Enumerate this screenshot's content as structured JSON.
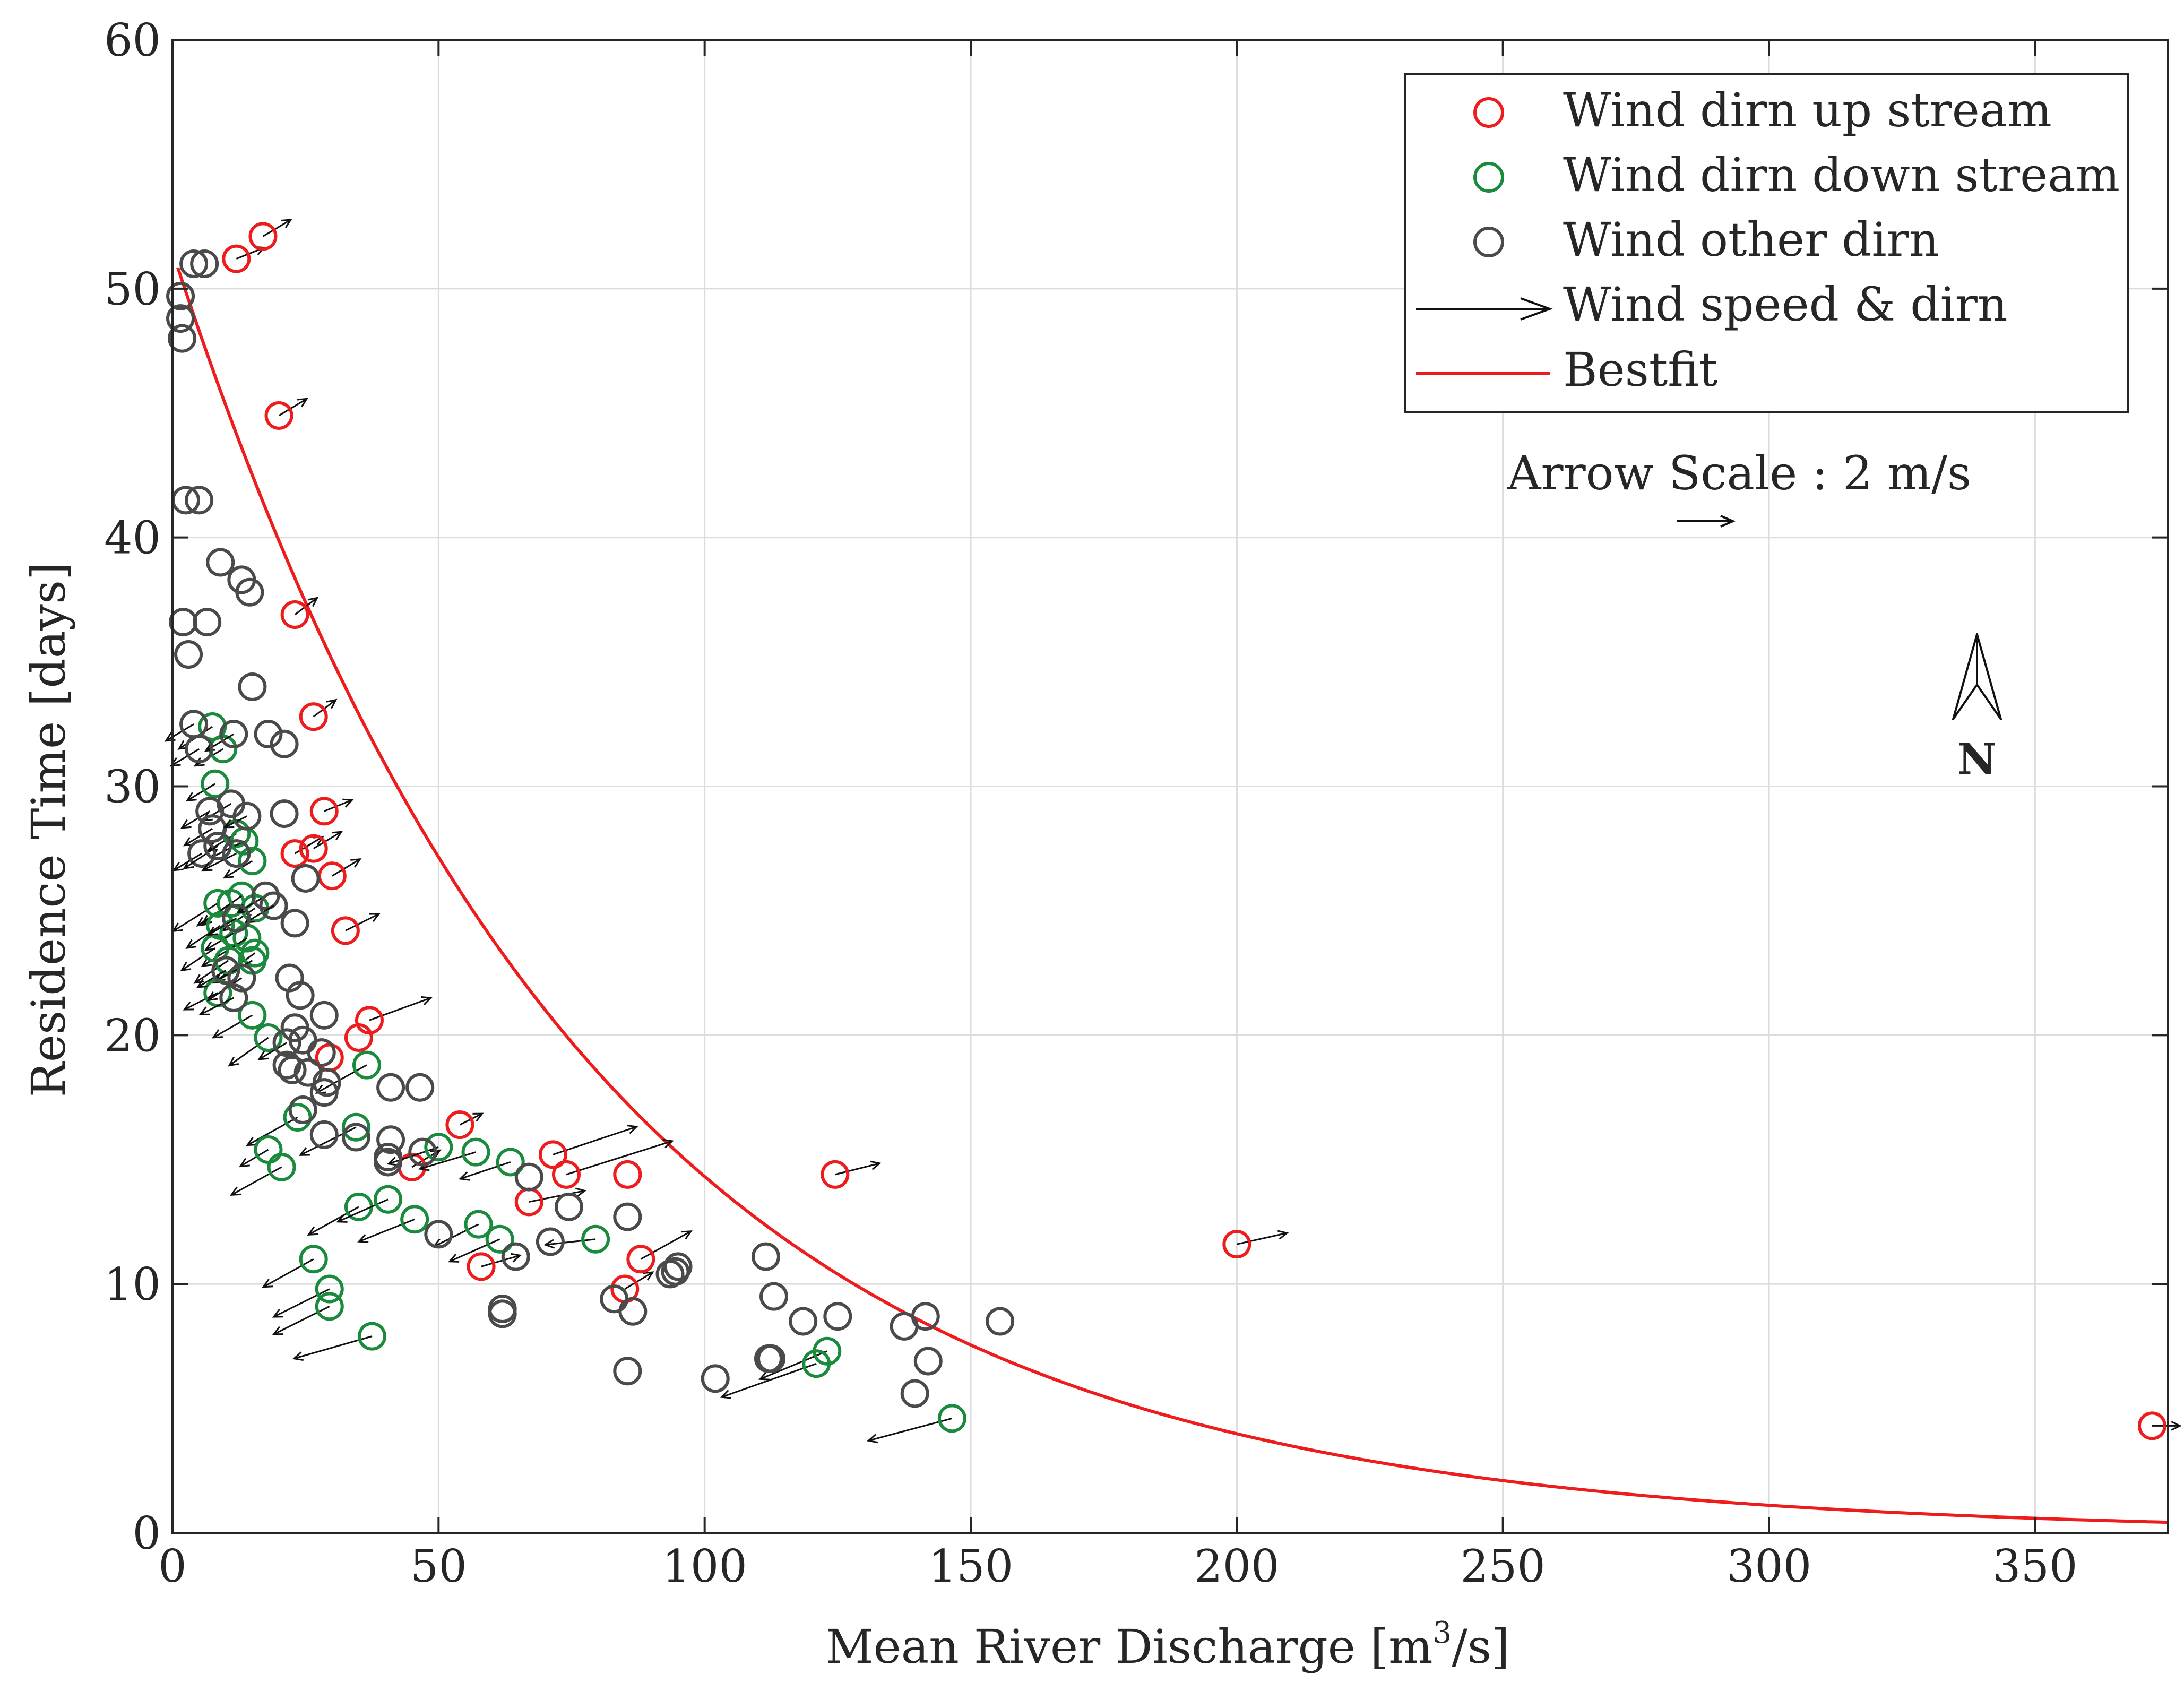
{
  "chart_data": {
    "type": "scatter",
    "title": "",
    "xlabel": {
      "main": "Mean River Discharge [m",
      "sup": "3",
      "tail": "/s]"
    },
    "ylabel": "Residence Time [days]",
    "xlim": [
      0,
      375
    ],
    "ylim": [
      0,
      60
    ],
    "xticks": [
      0,
      50,
      100,
      150,
      200,
      250,
      300,
      350
    ],
    "yticks": [
      0,
      10,
      20,
      30,
      40,
      50,
      60
    ],
    "xtick_labels": [
      "0",
      "50",
      "100",
      "150",
      "200",
      "250",
      "300",
      "350"
    ],
    "ytick_labels": [
      "0",
      "10",
      "20",
      "30",
      "40",
      "50",
      "60"
    ],
    "grid": true,
    "legend_position": "top-right",
    "legend": [
      {
        "label": "Wind dirn up stream",
        "marker": "circle",
        "color": "#ee1c1c"
      },
      {
        "label": "Wind dirn down stream",
        "marker": "circle",
        "color": "#1a8a3c"
      },
      {
        "label": "Wind other dirn",
        "marker": "circle",
        "color": "#4a4a4a"
      },
      {
        "label": "Wind speed & dirn",
        "marker": "arrow",
        "color": "#111111"
      },
      {
        "label": "Bestfit",
        "marker": "line",
        "color": "#ee1c1c"
      }
    ],
    "arrow_scale_label": "Arrow Scale : 2 m/s",
    "north_label": "N",
    "bestfit": {
      "a": 51.5,
      "b": 0.0128,
      "x_start": 1,
      "x_end": 375
    },
    "series": [
      {
        "name": "Wind dirn up stream",
        "color": "#ee1c1c",
        "points": [
          [
            12,
            51.2,
            5,
            2
          ],
          [
            17,
            52.1,
            5,
            3
          ],
          [
            20,
            44.9,
            5,
            3
          ],
          [
            23,
            36.9,
            4,
            3
          ],
          [
            26.5,
            32.8,
            4,
            3
          ],
          [
            28.5,
            29.0,
            5,
            2
          ],
          [
            23,
            27.3,
            5,
            3
          ],
          [
            26.5,
            27.5,
            5,
            3
          ],
          [
            30,
            26.4,
            5,
            3
          ],
          [
            32.5,
            24.2,
            6,
            3
          ],
          [
            37,
            20.6,
            11,
            4
          ],
          [
            35,
            19.9,
            0,
            0
          ],
          [
            29.5,
            19.1,
            0,
            0
          ],
          [
            54,
            16.4,
            4,
            2
          ],
          [
            45,
            14.7,
            5,
            3
          ],
          [
            71.5,
            15.2,
            15,
            5
          ],
          [
            74,
            14.4,
            19,
            6
          ],
          [
            67,
            13.3,
            10,
            2
          ],
          [
            85.5,
            14.4,
            0,
            0
          ],
          [
            124.5,
            14.4,
            8,
            2
          ],
          [
            58,
            10.7,
            7,
            2
          ],
          [
            85,
            9.8,
            5,
            3
          ],
          [
            88,
            11.0,
            9,
            5
          ],
          [
            200,
            11.6,
            9,
            2
          ],
          [
            372,
            4.3,
            5,
            0
          ]
        ]
      },
      {
        "name": "Wind dirn down stream",
        "color": "#1a8a3c",
        "points": [
          [
            7.5,
            32.4,
            -6,
            -4
          ],
          [
            9.5,
            31.5,
            -5,
            -3
          ],
          [
            8,
            30.1,
            -5,
            -3
          ],
          [
            12,
            28.1,
            -5,
            -3
          ],
          [
            13.5,
            27.8,
            -6,
            -3
          ],
          [
            15,
            27.0,
            -5,
            -3
          ],
          [
            8.5,
            25.3,
            -8,
            -5
          ],
          [
            11,
            25.3,
            -6,
            -4
          ],
          [
            13,
            25.6,
            -7,
            -5
          ],
          [
            15.5,
            25.1,
            -6,
            -4
          ],
          [
            9,
            24.4,
            -6,
            -4
          ],
          [
            11.5,
            24.1,
            -5,
            -3
          ],
          [
            14,
            23.9,
            -8,
            -5
          ],
          [
            15.5,
            23.3,
            -7,
            -5
          ],
          [
            8,
            23.5,
            -6,
            -4
          ],
          [
            10.5,
            23.0,
            -6,
            -4
          ],
          [
            15,
            23.0,
            -7,
            -4
          ],
          [
            8.5,
            21.7,
            -6,
            -3
          ],
          [
            15,
            20.8,
            -7,
            -4
          ],
          [
            18,
            19.9,
            -7,
            -5
          ],
          [
            36.5,
            18.8,
            -9,
            -5
          ],
          [
            23.5,
            16.7,
            -9,
            -5
          ],
          [
            34.5,
            16.3,
            -10,
            -5
          ],
          [
            18,
            15.4,
            -5,
            -3
          ],
          [
            20.5,
            14.7,
            -9,
            -5
          ],
          [
            50,
            15.5,
            -9,
            -3
          ],
          [
            57,
            15.3,
            -10,
            -3
          ],
          [
            63.5,
            14.9,
            -9,
            -3
          ],
          [
            35,
            13.1,
            -9,
            -5
          ],
          [
            40.5,
            13.4,
            -9,
            -4
          ],
          [
            45.5,
            12.6,
            -10,
            -4
          ],
          [
            57.5,
            12.4,
            -8,
            -4
          ],
          [
            61.5,
            11.8,
            -9,
            -4
          ],
          [
            79.5,
            11.8,
            -9,
            -1
          ],
          [
            26.5,
            11.0,
            -9,
            -5
          ],
          [
            29.5,
            9.8,
            -10,
            -5
          ],
          [
            29.5,
            9.1,
            -10,
            -5
          ],
          [
            37.5,
            7.9,
            -14,
            -4
          ],
          [
            123,
            7.3,
            -12,
            -5
          ],
          [
            121,
            6.8,
            -17,
            -6
          ],
          [
            146.5,
            4.6,
            -15,
            -4
          ]
        ]
      },
      {
        "name": "Wind other dirn",
        "color": "#4a4a4a",
        "points": [
          [
            4,
            51.0,
            0,
            0
          ],
          [
            6,
            51.0,
            0,
            0
          ],
          [
            1.5,
            49.7,
            0,
            0
          ],
          [
            1.5,
            48.8,
            0,
            0
          ],
          [
            1.8,
            48.0,
            0,
            0
          ],
          [
            2.5,
            41.5,
            0,
            0
          ],
          [
            5,
            41.5,
            0,
            0
          ],
          [
            9,
            39.0,
            0,
            0
          ],
          [
            13,
            38.3,
            0,
            0
          ],
          [
            14.5,
            37.8,
            0,
            0
          ],
          [
            2,
            36.6,
            0,
            0
          ],
          [
            6.5,
            36.6,
            0,
            0
          ],
          [
            3,
            35.3,
            0,
            0
          ],
          [
            15,
            34.0,
            0,
            0
          ],
          [
            4,
            32.5,
            -5,
            -3
          ],
          [
            11.5,
            32.1,
            -5,
            -3
          ],
          [
            18,
            32.1,
            0,
            0
          ],
          [
            21,
            31.7,
            0,
            0
          ],
          [
            5,
            31.5,
            -5,
            -3
          ],
          [
            11,
            29.3,
            -5,
            -3
          ],
          [
            7,
            29.0,
            -5,
            -3
          ],
          [
            7.5,
            28.3,
            -5,
            -3
          ],
          [
            14,
            28.8,
            -4,
            -2
          ],
          [
            21,
            28.9,
            0,
            0
          ],
          [
            5.5,
            27.3,
            -5,
            -3
          ],
          [
            8.5,
            27.6,
            -6,
            -4
          ],
          [
            12,
            27.3,
            -6,
            -3
          ],
          [
            25,
            26.3,
            0,
            0
          ],
          [
            17.5,
            25.6,
            -5,
            -3
          ],
          [
            19,
            25.2,
            -5,
            -3
          ],
          [
            12,
            24.7,
            -5,
            -3
          ],
          [
            23,
            24.5,
            0,
            0
          ],
          [
            10,
            22.6,
            -5,
            -3
          ],
          [
            13,
            22.3,
            -6,
            -4
          ],
          [
            22,
            22.3,
            0,
            0
          ],
          [
            24,
            21.6,
            0,
            0
          ],
          [
            11.5,
            21.5,
            -6,
            -3
          ],
          [
            28.5,
            20.8,
            0,
            0
          ],
          [
            23,
            20.3,
            0,
            0
          ],
          [
            24.5,
            19.8,
            0,
            0
          ],
          [
            21.5,
            19.7,
            -5,
            -3
          ],
          [
            28,
            19.3,
            0,
            0
          ],
          [
            21.5,
            18.8,
            0,
            0
          ],
          [
            22.5,
            18.6,
            0,
            0
          ],
          [
            25.5,
            18.5,
            0,
            0
          ],
          [
            29,
            18.1,
            0,
            0
          ],
          [
            28.5,
            17.7,
            0,
            0
          ],
          [
            41,
            17.9,
            0,
            0
          ],
          [
            46.5,
            17.9,
            0,
            0
          ],
          [
            24.5,
            17.0,
            0,
            0
          ],
          [
            28.5,
            16.0,
            0,
            0
          ],
          [
            34.5,
            15.9,
            0,
            0
          ],
          [
            41,
            15.8,
            0,
            0
          ],
          [
            40.5,
            15.1,
            0,
            0
          ],
          [
            40.5,
            14.9,
            0,
            0
          ],
          [
            47,
            15.3,
            0,
            0
          ],
          [
            67,
            14.3,
            0,
            0
          ],
          [
            74.5,
            13.1,
            0,
            0
          ],
          [
            50,
            12.0,
            0,
            0
          ],
          [
            64.5,
            11.1,
            0,
            0
          ],
          [
            71,
            11.7,
            0,
            0
          ],
          [
            85.5,
            12.7,
            0,
            0
          ],
          [
            93.5,
            10.4,
            0,
            0
          ],
          [
            94.5,
            10.5,
            0,
            0
          ],
          [
            95,
            10.7,
            0,
            0
          ],
          [
            83,
            9.4,
            0,
            0
          ],
          [
            86.5,
            8.9,
            0,
            0
          ],
          [
            62,
            9.0,
            0,
            0
          ],
          [
            62,
            8.8,
            0,
            0
          ],
          [
            111.5,
            11.1,
            0,
            0
          ],
          [
            113,
            9.5,
            0,
            0
          ],
          [
            118.5,
            8.5,
            0,
            0
          ],
          [
            125,
            8.7,
            0,
            0
          ],
          [
            137.5,
            8.3,
            0,
            0
          ],
          [
            141.5,
            8.7,
            0,
            0
          ],
          [
            155.5,
            8.5,
            0,
            0
          ],
          [
            112,
            7.0,
            0,
            0
          ],
          [
            112.5,
            7.0,
            0,
            0
          ],
          [
            142,
            6.9,
            0,
            0
          ],
          [
            139.5,
            5.6,
            0,
            0
          ],
          [
            85.5,
            6.5,
            0,
            0
          ],
          [
            102,
            6.2,
            0,
            0
          ]
        ]
      }
    ]
  }
}
